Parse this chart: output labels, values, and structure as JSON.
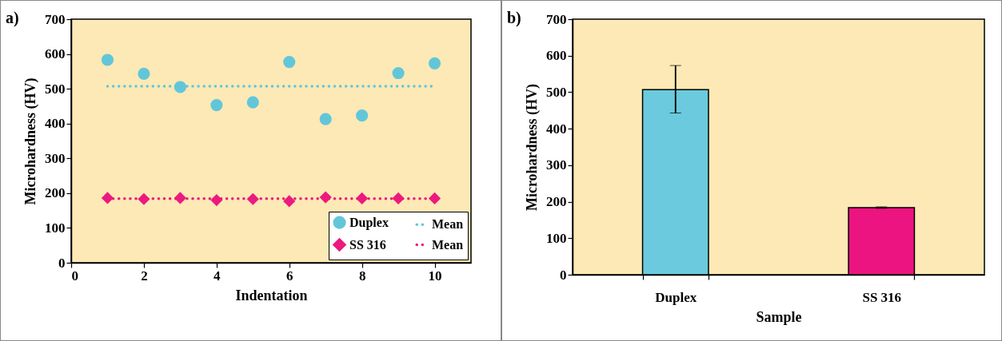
{
  "chart_data": [
    {
      "type": "scatter",
      "title": "a)",
      "xlabel": "Indentation",
      "ylabel": "Microhardness (HV)",
      "x": [
        1,
        2,
        3,
        4,
        5,
        6,
        7,
        8,
        9,
        10
      ],
      "xlim": [
        0,
        11
      ],
      "xticks": [
        0,
        2,
        4,
        6,
        8,
        10
      ],
      "ylim": [
        0,
        700
      ],
      "yticks": [
        0,
        100,
        200,
        300,
        400,
        500,
        600,
        700
      ],
      "grid": false,
      "legend": "bottom right",
      "series": [
        {
          "name": "Duplex",
          "color": "#62c6d9",
          "marker": "circle",
          "values": [
            583,
            543,
            505,
            453,
            461,
            577,
            413,
            423,
            545,
            573
          ]
        },
        {
          "name": "Mean",
          "type": "line",
          "color": "#62c6d9",
          "line_style": "dotted",
          "values": [
            507,
            507,
            507,
            507,
            507,
            507,
            507,
            507,
            507,
            507
          ]
        },
        {
          "name": "SS 316",
          "color": "#ec1a7f",
          "marker": "diamond",
          "values": [
            186,
            183,
            186,
            180,
            183,
            177,
            188,
            185,
            185,
            185
          ]
        },
        {
          "name": "Mean",
          "type": "line",
          "color": "#ec1a7f",
          "line_style": "dotted",
          "values": [
            184,
            184,
            184,
            184,
            184,
            184,
            184,
            184,
            184,
            184
          ]
        }
      ]
    },
    {
      "type": "bar",
      "title": "b)",
      "xlabel": "Sample",
      "ylabel": "Microhardness (HV)",
      "categories": [
        "Duplex",
        "SS 316"
      ],
      "values": [
        507,
        184
      ],
      "colors": [
        "#6bcadd",
        "#ec1480"
      ],
      "errors": [
        [
          443,
          573
        ],
        [
          182,
          186
        ]
      ],
      "ylim": [
        0,
        700
      ],
      "yticks": [
        0,
        100,
        200,
        300,
        400,
        500,
        600,
        700
      ],
      "grid": false
    }
  ]
}
